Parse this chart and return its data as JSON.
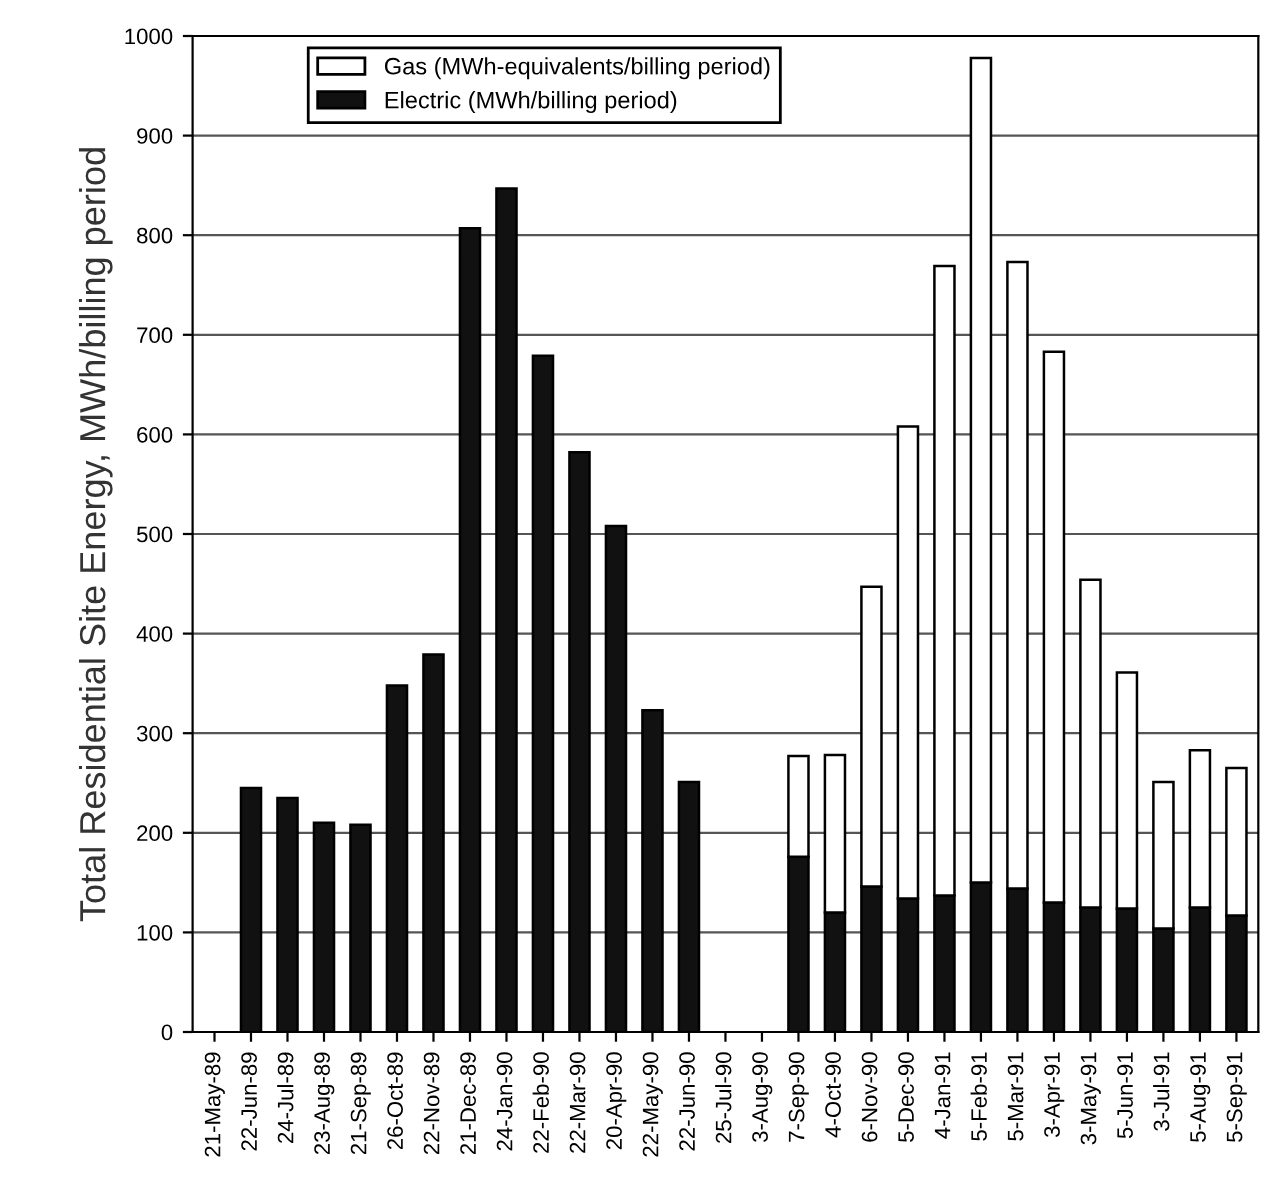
{
  "chart_data": {
    "type": "bar",
    "stacked": true,
    "ylabel": "Total Residential Site Energy, MWh/billing period",
    "categories": [
      "21-May-89",
      "22-Jun-89",
      "24-Jul-89",
      "23-Aug-89",
      "21-Sep-89",
      "26-Oct-89",
      "22-Nov-89",
      "21-Dec-89",
      "24-Jan-90",
      "22-Feb-90",
      "22-Mar-90",
      "20-Apr-90",
      "22-May-90",
      "22-Jun-90",
      "25-Jul-90",
      "3-Aug-90",
      "7-Sep-90",
      "4-Oct-90",
      "6-Nov-90",
      "5-Dec-90",
      "4-Jan-91",
      "5-Feb-91",
      "5-Mar-91",
      "3-Apr-91",
      "3-May-91",
      "5-Jun-91",
      "3-Jul-91",
      "5-Aug-91",
      "5-Sep-91"
    ],
    "series": [
      {
        "name": "Electric (MWh/billing period)",
        "color": "#111111",
        "values": [
          null,
          245,
          235,
          210,
          208,
          348,
          379,
          807,
          847,
          679,
          582,
          508,
          323,
          251,
          null,
          null,
          176,
          120,
          146,
          134,
          137,
          150,
          144,
          130,
          125,
          124,
          104,
          125,
          117
        ]
      },
      {
        "name": "Gas (MWh-equivalents/billing period)",
        "color": "#ffffff",
        "values": [
          null,
          null,
          null,
          null,
          null,
          null,
          null,
          null,
          null,
          null,
          null,
          null,
          null,
          null,
          null,
          null,
          101,
          158,
          301,
          474,
          632,
          828,
          629,
          553,
          329,
          237,
          147,
          158,
          148
        ]
      }
    ],
    "ylim": [
      0,
      1000
    ],
    "yticks": [
      0,
      100,
      200,
      300,
      400,
      500,
      600,
      700,
      800,
      900,
      1000
    ],
    "grid": "y",
    "legend": "top"
  }
}
